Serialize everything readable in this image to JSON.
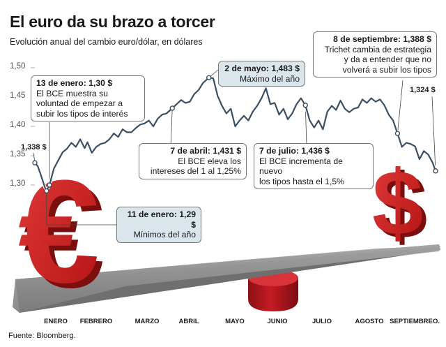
{
  "header": {
    "title": "El euro da su brazo a torcer",
    "subtitle": "Evolución anual del cambio euro/dólar, en dólares"
  },
  "footer": {
    "source": "Fuente: Bloomberg."
  },
  "colors": {
    "line": "#3b4f63",
    "marker": "#ffffff",
    "callout_highlight": "#dbe6ec",
    "callout_plain": "#ffffff",
    "euro_red": "#cc1f1f",
    "dollar_red": "#c81a1a",
    "seesaw": "#8a8a8a",
    "fulcrum": "#b8141e"
  },
  "icons": {
    "euro": "euro-sign-3d",
    "dollar": "dollar-sign-3d",
    "seesaw": "seesaw-plank",
    "fulcrum": "cylinder-fulcrum"
  },
  "chart_data": {
    "type": "line",
    "title": "El euro da su brazo a torcer",
    "subtitle": "Evolución anual del cambio euro/dólar, en dólares",
    "xlabel": "",
    "ylabel": "",
    "ylim": [
      1.27,
      1.51
    ],
    "y_ticks": [
      "1,50",
      "1,45",
      "1,40",
      "1,35",
      "1,30"
    ],
    "y_tick_values": [
      1.5,
      1.45,
      1.4,
      1.35,
      1.3
    ],
    "x_ticks": [
      "ENERO",
      "FEBRERO",
      "MARZO",
      "ABRIL",
      "MAYO",
      "JUNIO",
      "JULIO",
      "AGOSTO",
      "SEPTIEMBRE",
      "O."
    ],
    "x_tick_days": [
      0,
      31,
      59,
      90,
      120,
      151,
      181,
      212,
      243,
      273
    ],
    "grid": false,
    "series": [
      {
        "x": [
          "2011-01-03",
          "2011-01-05",
          "2011-01-07",
          "2011-01-10",
          "2011-01-11",
          "2011-01-13",
          "2011-01-16",
          "2011-01-19",
          "2011-01-22",
          "2011-01-25",
          "2011-01-28",
          "2011-01-31",
          "2011-02-03",
          "2011-02-06",
          "2011-02-08",
          "2011-02-11",
          "2011-02-14",
          "2011-02-17",
          "2011-02-20",
          "2011-02-23",
          "2011-02-26",
          "2011-03-01",
          "2011-03-04",
          "2011-03-07",
          "2011-03-10",
          "2011-03-13",
          "2011-03-16",
          "2011-03-19",
          "2011-03-22",
          "2011-03-25",
          "2011-03-28",
          "2011-03-31",
          "2011-04-03",
          "2011-04-07",
          "2011-04-10",
          "2011-04-13",
          "2011-04-16",
          "2011-04-19",
          "2011-04-22",
          "2011-04-25",
          "2011-04-28",
          "2011-05-02",
          "2011-05-05",
          "2011-05-08",
          "2011-05-11",
          "2011-05-14",
          "2011-05-17",
          "2011-05-20",
          "2011-05-23",
          "2011-05-26",
          "2011-05-29",
          "2011-06-01",
          "2011-06-04",
          "2011-06-07",
          "2011-06-10",
          "2011-06-13",
          "2011-06-16",
          "2011-06-19",
          "2011-06-22",
          "2011-06-25",
          "2011-06-28",
          "2011-07-01",
          "2011-07-04",
          "2011-07-07",
          "2011-07-10",
          "2011-07-13",
          "2011-07-16",
          "2011-07-19",
          "2011-07-22",
          "2011-07-25",
          "2011-07-28",
          "2011-07-31",
          "2011-08-03",
          "2011-08-06",
          "2011-08-09",
          "2011-08-12",
          "2011-08-15",
          "2011-08-18",
          "2011-08-21",
          "2011-08-24",
          "2011-08-27",
          "2011-08-30",
          "2011-09-02",
          "2011-09-05",
          "2011-09-08",
          "2011-09-11",
          "2011-09-14",
          "2011-09-17",
          "2011-09-20",
          "2011-09-23",
          "2011-09-26",
          "2011-09-29",
          "2011-10-02",
          "2011-10-04"
        ],
        "values": [
          1.338,
          1.332,
          1.318,
          1.295,
          1.29,
          1.3,
          1.328,
          1.342,
          1.356,
          1.362,
          1.372,
          1.365,
          1.378,
          1.363,
          1.373,
          1.355,
          1.365,
          1.37,
          1.372,
          1.378,
          1.388,
          1.382,
          1.395,
          1.39,
          1.39,
          1.397,
          1.403,
          1.405,
          1.41,
          1.4,
          1.413,
          1.42,
          1.422,
          1.431,
          1.438,
          1.445,
          1.44,
          1.442,
          1.455,
          1.462,
          1.474,
          1.483,
          1.482,
          1.452,
          1.435,
          1.422,
          1.43,
          1.4,
          1.41,
          1.418,
          1.41,
          1.425,
          1.435,
          1.448,
          1.465,
          1.438,
          1.44,
          1.42,
          1.43,
          1.412,
          1.422,
          1.438,
          1.448,
          1.436,
          1.41,
          1.398,
          1.41,
          1.395,
          1.425,
          1.435,
          1.428,
          1.444,
          1.43,
          1.424,
          1.43,
          1.432,
          1.446,
          1.44,
          1.448,
          1.442,
          1.446,
          1.436,
          1.42,
          1.41,
          1.388,
          1.365,
          1.372,
          1.37,
          1.366,
          1.344,
          1.358,
          1.352,
          1.338,
          1.324
        ]
      }
    ],
    "annotations": [
      {
        "date": "2011-01-11",
        "value": 1.29,
        "heading": "11 de enero: 1,29 $",
        "text": "Mínimos del año"
      },
      {
        "date": "2011-01-13",
        "value": 1.3,
        "heading": "13 de enero: 1,30 $",
        "text": "El BCE muestra su\nvoluntad de empezar a\nsubir los tipos de interés"
      },
      {
        "date": "2011-04-07",
        "value": 1.431,
        "heading": "7 de abril: 1,431 $",
        "text": "El BCE eleva los\nintereses del 1 al 1,25%"
      },
      {
        "date": "2011-05-02",
        "value": 1.483,
        "heading": "2 de mayo: 1,483 $",
        "text": "Máximo del año"
      },
      {
        "date": "2011-07-07",
        "value": 1.436,
        "heading": "7 de julio: 1,436 $",
        "text": "El BCE incrementa de nuevo\nlos tipos hasta el 1,5%"
      },
      {
        "date": "2011-09-08",
        "value": 1.388,
        "heading": "8 de septiembre: 1,388 $",
        "text": "Trichet cambia de estrategia\ny da a entender que no\nvolverá a subir los tipos"
      }
    ],
    "endpoint_labels": [
      "1,338 $",
      "1,324 $"
    ]
  }
}
